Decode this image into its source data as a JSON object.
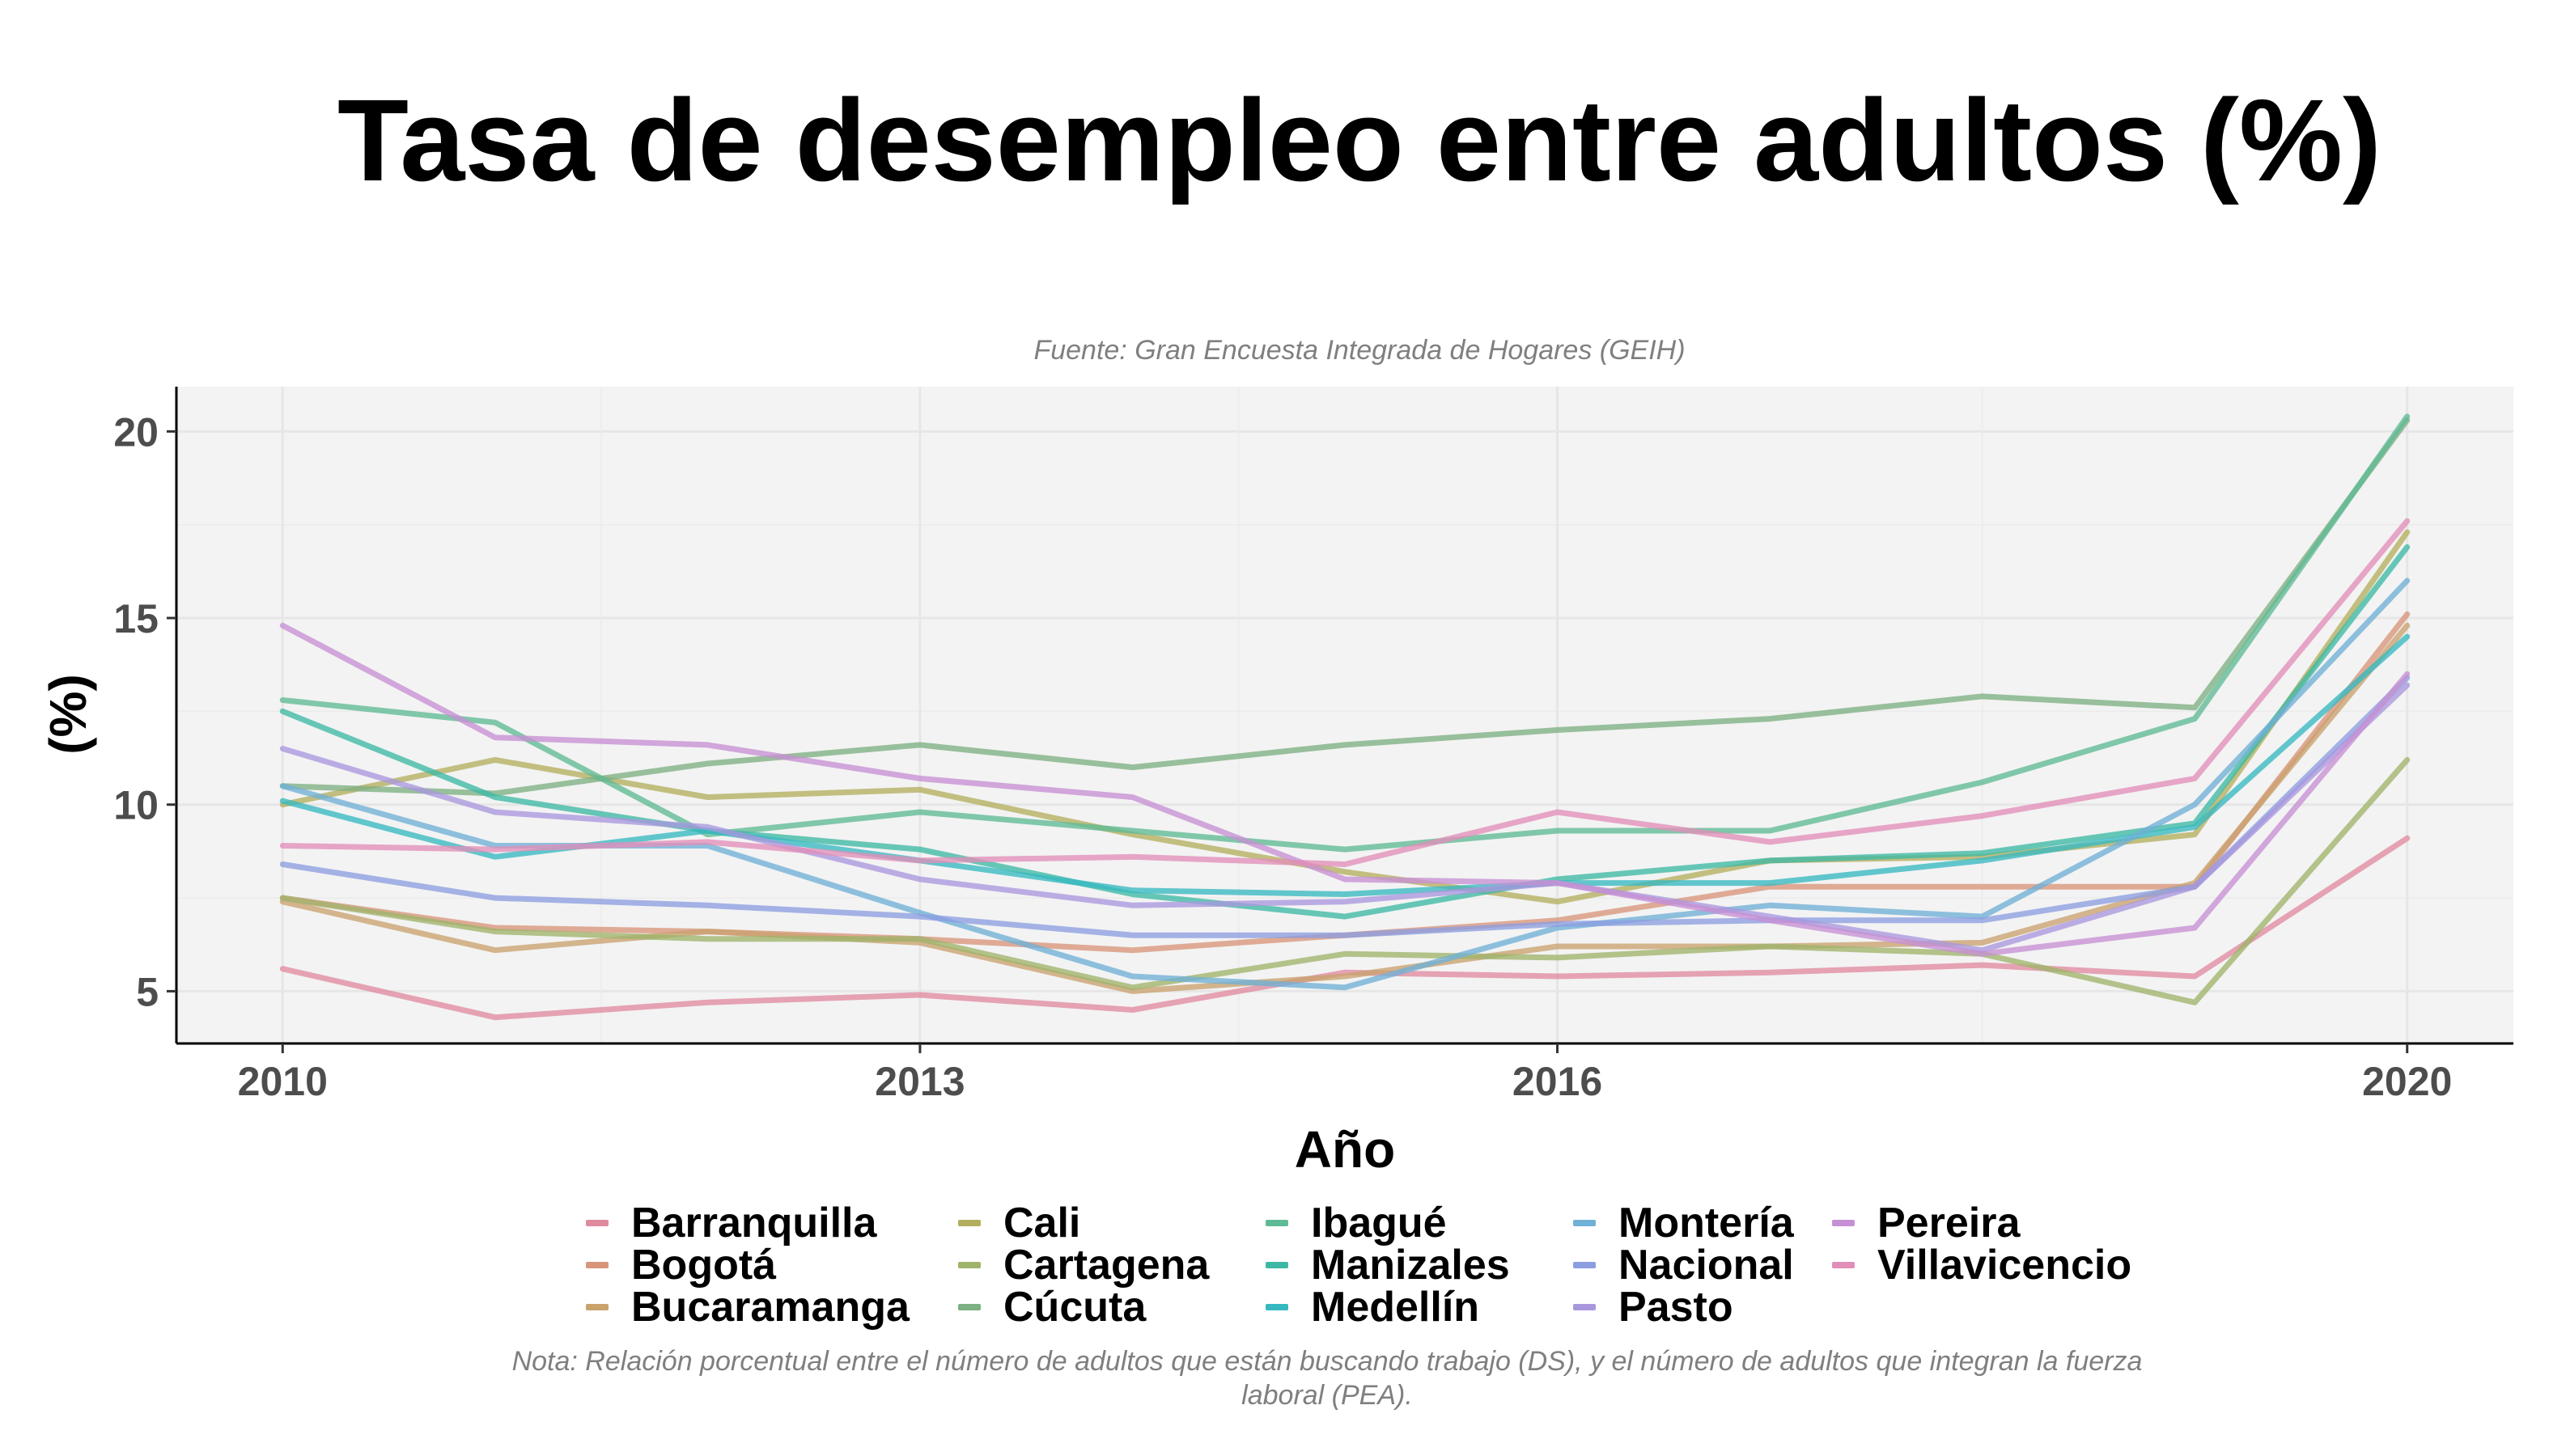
{
  "chart_data": {
    "type": "line",
    "title": "Tasa de desempleo entre adultos (%)",
    "subtitle": "Fuente: Gran Encuesta Integrada de Hogares (GEIH)",
    "xlabel": "Año",
    "ylabel": "(%)",
    "note": "Nota: Relación porcentual entre el número de adultos que están buscando trabajo (DS), y el número de adultos que integran la fuerza laboral (PEA).",
    "x": [
      2010,
      2011,
      2012,
      2013,
      2014,
      2015,
      2016,
      2017,
      2018,
      2019,
      2020
    ],
    "xticks": [
      "2010",
      "2013",
      "2016",
      "2020"
    ],
    "yticks": [
      "5",
      "10",
      "15",
      "20"
    ],
    "xlim": [
      2009.5,
      2020.5
    ],
    "ylim": [
      3.6,
      21.2
    ],
    "grid": true,
    "legend_position": "bottom",
    "series": [
      {
        "name": "Barranquilla",
        "color": "#e08aa0",
        "values": [
          5.6,
          4.3,
          4.7,
          4.9,
          4.5,
          5.5,
          5.4,
          5.5,
          5.7,
          5.4,
          9.1
        ]
      },
      {
        "name": "Bogotá",
        "color": "#d8957a",
        "values": [
          7.5,
          6.7,
          6.6,
          6.4,
          6.1,
          6.5,
          6.9,
          7.8,
          7.8,
          7.8,
          15.1
        ]
      },
      {
        "name": "Bucaramanga",
        "color": "#c9a26e",
        "values": [
          7.4,
          6.1,
          6.6,
          6.3,
          5.0,
          5.4,
          6.2,
          6.2,
          6.3,
          7.9,
          14.8
        ]
      },
      {
        "name": "Cali",
        "color": "#b3ae5e",
        "values": [
          10.0,
          11.2,
          10.2,
          10.4,
          9.2,
          8.2,
          7.4,
          8.5,
          8.6,
          9.2,
          17.3
        ]
      },
      {
        "name": "Cartagena",
        "color": "#9fb36a",
        "values": [
          7.5,
          6.6,
          6.4,
          6.4,
          5.1,
          6.0,
          5.9,
          6.2,
          6.0,
          4.7,
          11.2
        ]
      },
      {
        "name": "Cúcuta",
        "color": "#7db082",
        "values": [
          10.5,
          10.3,
          11.1,
          11.6,
          11.0,
          11.6,
          12.0,
          12.3,
          12.9,
          12.6,
          20.3
        ]
      },
      {
        "name": "Ibagué",
        "color": "#5fba95",
        "values": [
          12.8,
          12.2,
          9.2,
          9.8,
          9.3,
          8.8,
          9.3,
          9.3,
          10.6,
          12.3,
          20.4
        ]
      },
      {
        "name": "Manizales",
        "color": "#3eb8a4",
        "values": [
          12.5,
          10.2,
          9.3,
          8.8,
          7.6,
          7.0,
          8.0,
          8.5,
          8.7,
          9.5,
          16.9
        ]
      },
      {
        "name": "Medellín",
        "color": "#37b8c0",
        "values": [
          10.1,
          8.6,
          9.3,
          8.5,
          7.7,
          7.6,
          7.9,
          7.9,
          8.5,
          9.4,
          14.5
        ]
      },
      {
        "name": "Montería",
        "color": "#6fb0d6",
        "values": [
          10.5,
          8.9,
          8.9,
          7.1,
          5.4,
          5.1,
          6.7,
          7.3,
          7.0,
          10.0,
          16.0
        ]
      },
      {
        "name": "Nacional",
        "color": "#8c9ee0",
        "values": [
          8.4,
          7.5,
          7.3,
          7.0,
          6.5,
          6.5,
          6.8,
          6.9,
          6.9,
          7.8,
          13.4
        ]
      },
      {
        "name": "Pasto",
        "color": "#a997de",
        "values": [
          11.5,
          9.8,
          9.4,
          8.0,
          7.3,
          7.4,
          7.9,
          7.0,
          6.1,
          7.8,
          13.2
        ]
      },
      {
        "name": "Pereira",
        "color": "#c690d4",
        "values": [
          14.8,
          11.8,
          11.6,
          10.7,
          10.2,
          8.0,
          7.9,
          6.9,
          6.0,
          6.7,
          13.5
        ]
      },
      {
        "name": "Villavicencio",
        "color": "#e18eb9",
        "values": [
          8.9,
          8.8,
          9.0,
          8.5,
          8.6,
          8.4,
          9.8,
          9.0,
          9.7,
          10.7,
          17.6
        ]
      }
    ]
  }
}
